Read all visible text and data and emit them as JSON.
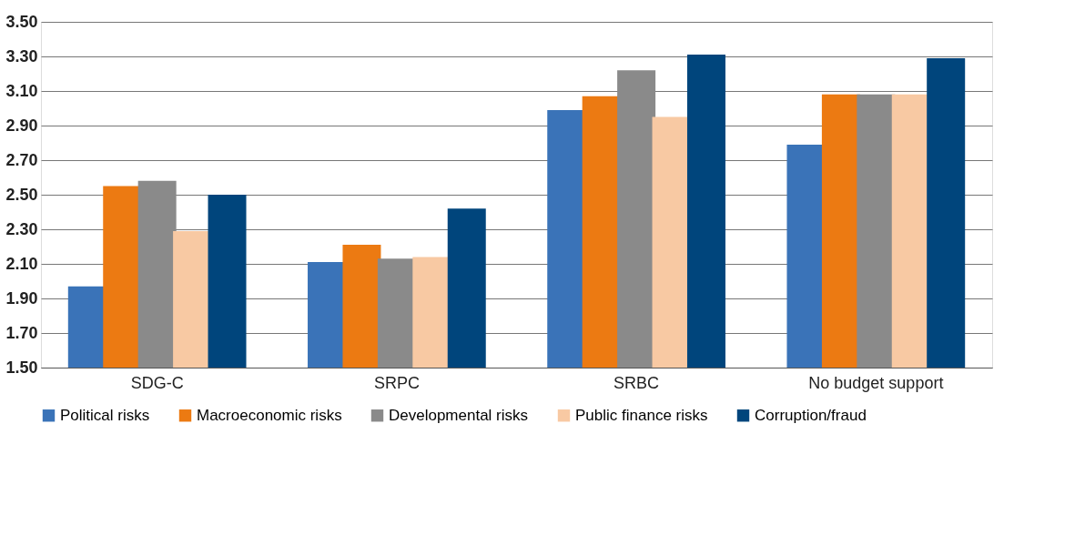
{
  "chart_data": {
    "type": "bar",
    "categories": [
      "SDG-C",
      "SRPC",
      "SRBC",
      "No budget support"
    ],
    "series": [
      {
        "name": "Political risks",
        "color": "#3a73b8",
        "values": [
          1.97,
          2.11,
          2.99,
          2.79
        ]
      },
      {
        "name": "Macroeconomic risks",
        "color": "#ec7a12",
        "values": [
          2.55,
          2.21,
          3.07,
          3.08
        ]
      },
      {
        "name": "Developmental risks",
        "color": "#8a8a8a",
        "values": [
          2.58,
          2.13,
          3.22,
          3.08
        ]
      },
      {
        "name": "Public finance risks",
        "color": "#f8c9a3",
        "values": [
          2.29,
          2.14,
          2.95,
          3.08
        ]
      },
      {
        "name": "Corruption/fraud",
        "color": "#00457c",
        "values": [
          2.5,
          2.42,
          3.31,
          3.29
        ]
      }
    ],
    "ylim": [
      1.5,
      3.5
    ],
    "yticks": [
      {
        "value": 1.5,
        "label": "1.50"
      },
      {
        "value": 1.7,
        "label": "1.70"
      },
      {
        "value": 1.9,
        "label": "1.90"
      },
      {
        "value": 2.1,
        "label": "2.10"
      },
      {
        "value": 2.3,
        "label": "2.30"
      },
      {
        "value": 2.5,
        "label": "2.50"
      },
      {
        "value": 2.7,
        "label": "2.70"
      },
      {
        "value": 2.9,
        "label": "2.90"
      },
      {
        "value": 3.1,
        "label": "3.10"
      },
      {
        "value": 3.3,
        "label": "3.30"
      },
      {
        "value": 3.5,
        "label": "3.50"
      }
    ],
    "grid": "y",
    "legend": "bottom"
  }
}
